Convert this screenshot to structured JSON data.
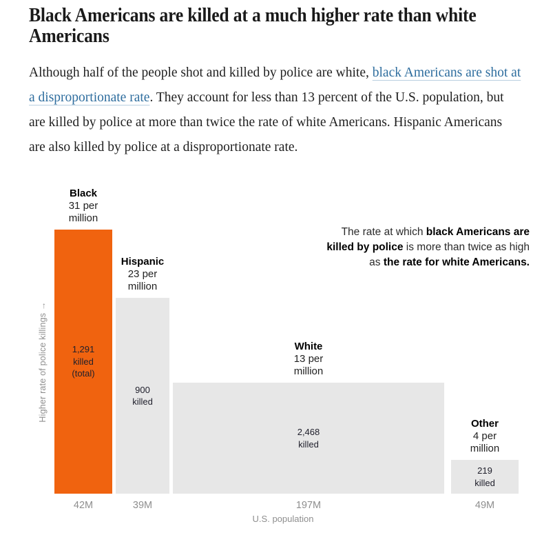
{
  "page": {
    "headline": "Black Americans are killed at a much higher rate than white Americans",
    "paragraph": {
      "pre": "Although half of the people shot and killed by police are white, ",
      "link": "black Americans are shot at a disproportionate rate",
      "post": ". They account for less than 13 percent of the U.S. population, but are killed by police at more than twice the rate of white Americans. Hispanic Americans are also killed by police at a disproportionate rate."
    }
  },
  "chart_data": {
    "type": "bar",
    "variant": "variable-width bar chart: width proportional to population, height proportional to killing rate",
    "title": "",
    "xlabel": "U.S. population",
    "ylabel": "Higher rate of police killings →",
    "categories": [
      "Black",
      "Hispanic",
      "White",
      "Other"
    ],
    "series": [
      {
        "name": "rate_per_million",
        "values": [
          31,
          23,
          13,
          4
        ]
      },
      {
        "name": "total_killed",
        "values": [
          1291,
          900,
          2468,
          219
        ]
      },
      {
        "name": "population_millions",
        "values": [
          42,
          39,
          197,
          49
        ]
      }
    ],
    "bars": [
      {
        "category": "Black",
        "rate_per_million": 31,
        "rate_lines": [
          "31 per",
          "million"
        ],
        "killed_lines": [
          "1,291",
          "killed",
          "(total)"
        ],
        "population_millions": 42,
        "population_label": "42M",
        "highlighted": true
      },
      {
        "category": "Hispanic",
        "rate_per_million": 23,
        "rate_lines": [
          "23 per",
          "million"
        ],
        "killed_lines": [
          "900",
          "killed"
        ],
        "population_millions": 39,
        "population_label": "39M",
        "highlighted": false
      },
      {
        "category": "White",
        "rate_per_million": 13,
        "rate_lines": [
          "13 per",
          "million"
        ],
        "killed_lines": [
          "2,468",
          "killed"
        ],
        "population_millions": 197,
        "population_label": "197M",
        "highlighted": false
      },
      {
        "category": "Other",
        "rate_per_million": 4,
        "rate_lines": [
          "4 per",
          "million"
        ],
        "killed_lines": [
          "219",
          "killed"
        ],
        "population_millions": 49,
        "population_label": "49M",
        "highlighted": false
      }
    ],
    "annotation": {
      "align": "right",
      "lines": [
        [
          {
            "t": "The rate at which ",
            "b": false
          },
          {
            "t": "black Americans are",
            "b": true
          }
        ],
        [
          {
            "t": "killed by police",
            "b": true
          },
          {
            "t": " is more than twice as high",
            "b": false
          }
        ],
        [
          {
            "t": "as ",
            "b": false
          },
          {
            "t": "the rate for white Americans.",
            "b": true
          }
        ]
      ]
    },
    "colors": {
      "highlight": "#f0630f",
      "muted": "#e7e7e7"
    },
    "layout": {
      "legend": false,
      "grid": false,
      "axis_line": false
    }
  }
}
